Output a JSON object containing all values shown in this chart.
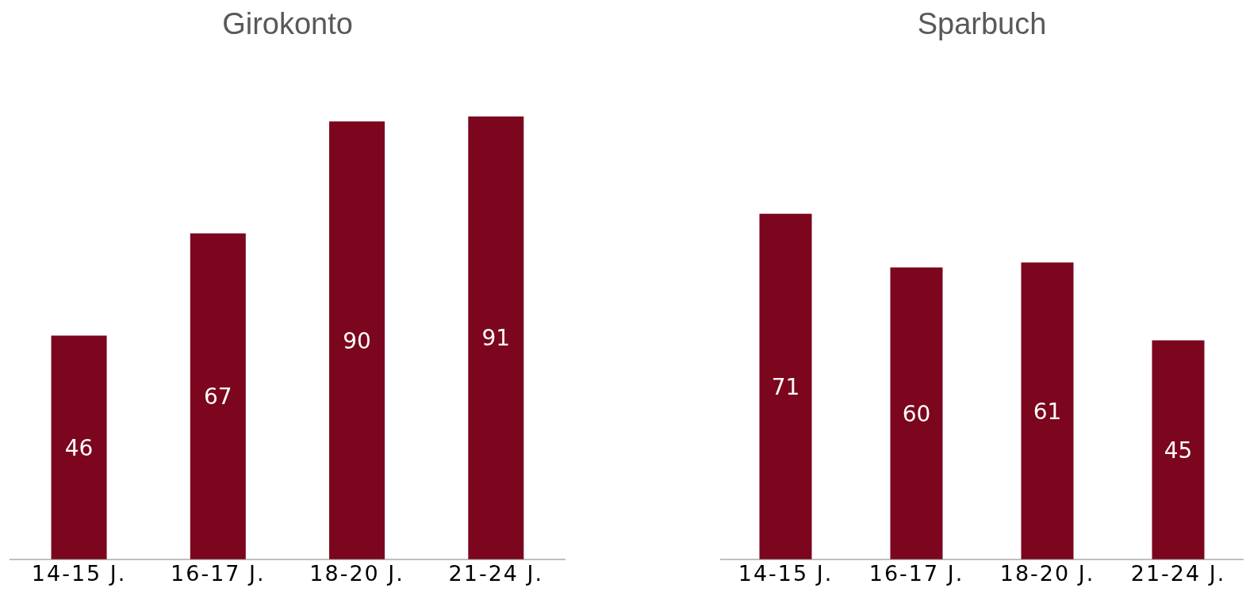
{
  "chart_data": [
    {
      "type": "bar",
      "title": "Girokonto",
      "categories": [
        "14-15 J.",
        "16-17 J.",
        "18-20 J.",
        "21-24 J."
      ],
      "values": [
        46,
        67,
        90,
        91
      ],
      "color": "#7b061e",
      "data_labels": true,
      "grid": false,
      "legend": false
    },
    {
      "type": "bar",
      "title": "Sparbuch",
      "categories": [
        "14-15 J.",
        "16-17 J.",
        "18-20 J.",
        "21-24 J."
      ],
      "values": [
        71,
        60,
        61,
        45
      ],
      "color": "#7b061e",
      "data_labels": true,
      "grid": false,
      "legend": false
    }
  ]
}
